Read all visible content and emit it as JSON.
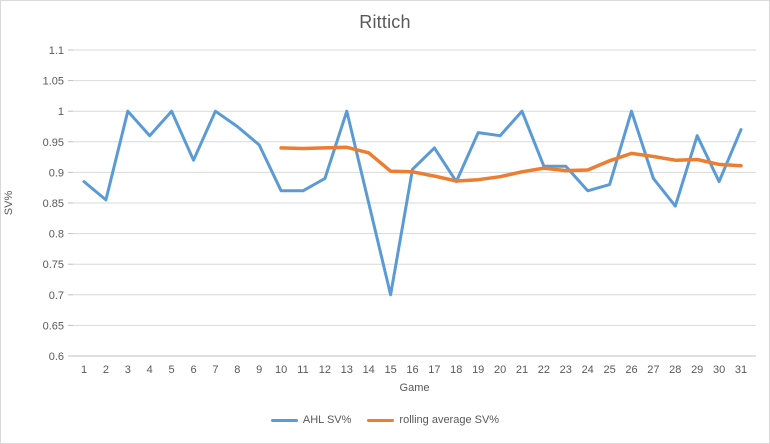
{
  "chart_data": {
    "type": "line",
    "title": "Rittich",
    "xlabel": "Game",
    "ylabel": "SV%",
    "ylim": [
      0.6,
      1.1
    ],
    "y_ticks": [
      {
        "value": 1.1,
        "label": "1.1"
      },
      {
        "value": 1.05,
        "label": "1.05"
      },
      {
        "value": 1.0,
        "label": "1"
      },
      {
        "value": 0.95,
        "label": "0.95"
      },
      {
        "value": 0.9,
        "label": "0.9"
      },
      {
        "value": 0.85,
        "label": "0.85"
      },
      {
        "value": 0.8,
        "label": "0.8"
      },
      {
        "value": 0.75,
        "label": "0.75"
      },
      {
        "value": 0.7,
        "label": "0.7"
      },
      {
        "value": 0.65,
        "label": "0.65"
      },
      {
        "value": 0.6,
        "label": "0.6"
      }
    ],
    "categories": [
      1,
      2,
      3,
      4,
      5,
      6,
      7,
      8,
      9,
      10,
      11,
      12,
      13,
      14,
      15,
      16,
      17,
      18,
      19,
      20,
      21,
      22,
      23,
      24,
      25,
      26,
      27,
      28,
      29,
      30,
      31
    ],
    "series": [
      {
        "name": "AHL SV%",
        "color": "#5B9BD5",
        "start_category": 1,
        "values": [
          0.885,
          0.855,
          1.0,
          0.96,
          1.0,
          0.92,
          1.0,
          0.975,
          0.945,
          0.87,
          0.87,
          0.89,
          1.0,
          0.85,
          0.7,
          0.905,
          0.94,
          0.885,
          0.965,
          0.96,
          1.0,
          0.91,
          0.91,
          0.87,
          0.88,
          1.0,
          0.89,
          0.845,
          0.96,
          0.885,
          0.97
        ]
      },
      {
        "name": "rolling average SV%",
        "color": "#ED7D31",
        "start_category": 10,
        "values": [
          0.94,
          0.939,
          0.94,
          0.941,
          0.932,
          0.902,
          0.901,
          0.894,
          0.886,
          0.888,
          0.893,
          0.901,
          0.907,
          0.903,
          0.904,
          0.919,
          0.931,
          0.926,
          0.92,
          0.921,
          0.913,
          0.911
        ]
      }
    ],
    "grid": true,
    "legend_position": "bottom"
  },
  "colors": {
    "background": "#FFFFFF",
    "frame_border": "#D9D9D9",
    "gridline": "#D9D9D9",
    "axis_line": "#BFBFBF",
    "text": "#595959"
  }
}
